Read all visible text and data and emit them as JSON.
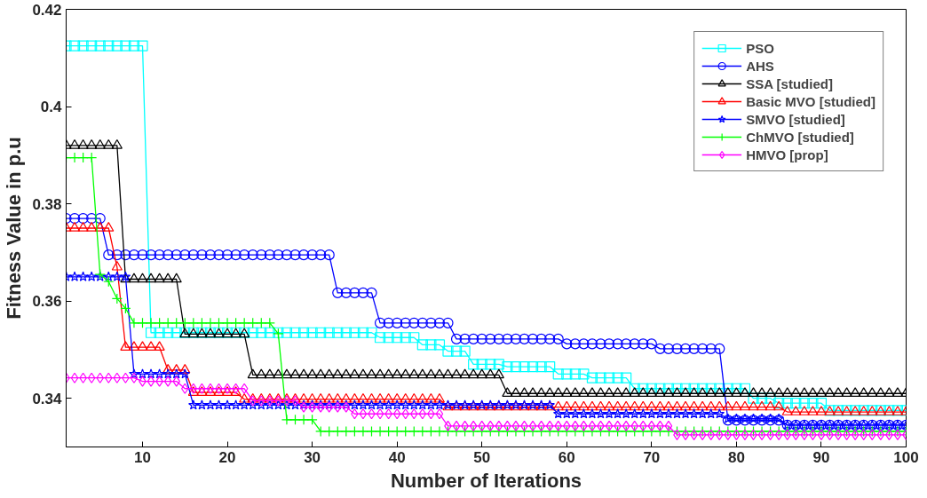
{
  "chart_data": {
    "type": "line",
    "xlabel": "Number of Iterations",
    "ylabel": "Fitness Value in p.u",
    "x": [
      1,
      2,
      3,
      4,
      5,
      6,
      7,
      8,
      9,
      10,
      11,
      12,
      13,
      14,
      15,
      16,
      17,
      18,
      19,
      20,
      21,
      22,
      23,
      24,
      25,
      26,
      27,
      28,
      29,
      30,
      31,
      32,
      33,
      34,
      35,
      36,
      37,
      38,
      39,
      40,
      41,
      42,
      43,
      44,
      45,
      46,
      47,
      48,
      49,
      50,
      51,
      52,
      53,
      54,
      55,
      56,
      57,
      58,
      59,
      60,
      61,
      62,
      63,
      64,
      65,
      66,
      67,
      68,
      69,
      70,
      71,
      72,
      73,
      74,
      75,
      76,
      77,
      78,
      79,
      80,
      81,
      82,
      83,
      84,
      85,
      86,
      87,
      88,
      89,
      90,
      91,
      92,
      93,
      94,
      95,
      96,
      97,
      98,
      99,
      100
    ],
    "xlim": [
      1,
      100
    ],
    "xticks": [
      10,
      20,
      30,
      40,
      50,
      60,
      70,
      80,
      90,
      100
    ],
    "ylim": [
      0.33,
      0.42
    ],
    "yticks": [
      0.34,
      0.36,
      0.38,
      0.4,
      0.42
    ],
    "grid": false,
    "legend": "top right",
    "line_style": "solid",
    "series": [
      {
        "name": "PSO",
        "color": "#00ffff",
        "marker": "square",
        "values": [
          0.4125,
          0.4125,
          0.4125,
          0.4125,
          0.4125,
          0.4125,
          0.4125,
          0.4125,
          0.4125,
          0.4125,
          0.3535,
          0.3535,
          0.3535,
          0.3535,
          0.3535,
          0.3535,
          0.3535,
          0.3535,
          0.3535,
          0.3535,
          0.3535,
          0.3535,
          0.3535,
          0.3535,
          0.3535,
          0.3535,
          0.3535,
          0.3535,
          0.3535,
          0.3535,
          0.3535,
          0.3535,
          0.3535,
          0.3535,
          0.3535,
          0.3535,
          0.3535,
          0.3525,
          0.3525,
          0.3525,
          0.3525,
          0.3525,
          0.351,
          0.351,
          0.351,
          0.3497,
          0.3497,
          0.3497,
          0.347,
          0.347,
          0.347,
          0.347,
          0.3465,
          0.3465,
          0.3465,
          0.3465,
          0.3465,
          0.3465,
          0.345,
          0.345,
          0.345,
          0.345,
          0.3442,
          0.3442,
          0.3442,
          0.3442,
          0.3442,
          0.342,
          0.342,
          0.342,
          0.342,
          0.342,
          0.342,
          0.342,
          0.342,
          0.342,
          0.342,
          0.342,
          0.342,
          0.342,
          0.342,
          0.34,
          0.34,
          0.34,
          0.339,
          0.339,
          0.339,
          0.339,
          0.339,
          0.339,
          0.3375,
          0.3375,
          0.3375,
          0.3375,
          0.3375,
          0.3375,
          0.3375,
          0.3375,
          0.3375,
          0.3375
        ]
      },
      {
        "name": "AHS",
        "color": "#0000ff",
        "marker": "circle",
        "values": [
          0.377,
          0.377,
          0.377,
          0.377,
          0.377,
          0.3695,
          0.3695,
          0.3695,
          0.3695,
          0.3695,
          0.3695,
          0.3695,
          0.3695,
          0.3695,
          0.3695,
          0.3695,
          0.3695,
          0.3695,
          0.3695,
          0.3695,
          0.3695,
          0.3695,
          0.3695,
          0.3695,
          0.3695,
          0.3695,
          0.3695,
          0.3695,
          0.3695,
          0.3695,
          0.3695,
          0.3695,
          0.3617,
          0.3617,
          0.3617,
          0.3617,
          0.3617,
          0.3555,
          0.3555,
          0.3555,
          0.3555,
          0.3555,
          0.3555,
          0.3555,
          0.3555,
          0.3555,
          0.3522,
          0.3522,
          0.3522,
          0.3522,
          0.3522,
          0.3522,
          0.3522,
          0.3522,
          0.3522,
          0.3522,
          0.3522,
          0.3522,
          0.3522,
          0.3512,
          0.3512,
          0.3512,
          0.3512,
          0.3512,
          0.3512,
          0.3512,
          0.3512,
          0.3512,
          0.3512,
          0.3512,
          0.3502,
          0.3502,
          0.3502,
          0.3502,
          0.3502,
          0.3502,
          0.3502,
          0.3502,
          0.3355,
          0.3355,
          0.3355,
          0.3355,
          0.3355,
          0.3355,
          0.3355,
          0.3345,
          0.3345,
          0.3345,
          0.3345,
          0.3345,
          0.3345,
          0.3345,
          0.3345,
          0.3345,
          0.3345,
          0.3345,
          0.3345,
          0.3345,
          0.3345,
          0.3345
        ]
      },
      {
        "name": "SSA [studied]",
        "color": "#000000",
        "marker": "triangle",
        "values": [
          0.392,
          0.392,
          0.392,
          0.392,
          0.392,
          0.392,
          0.392,
          0.3645,
          0.3645,
          0.3645,
          0.3645,
          0.3645,
          0.3645,
          0.3645,
          0.3532,
          0.3532,
          0.3532,
          0.3532,
          0.3532,
          0.3532,
          0.3532,
          0.3532,
          0.3448,
          0.3448,
          0.3448,
          0.3448,
          0.3448,
          0.3448,
          0.3448,
          0.3448,
          0.3448,
          0.3448,
          0.3448,
          0.3448,
          0.3448,
          0.3448,
          0.3448,
          0.3448,
          0.3448,
          0.3448,
          0.3448,
          0.3448,
          0.3448,
          0.3448,
          0.3448,
          0.3448,
          0.3448,
          0.3448,
          0.3448,
          0.3448,
          0.3448,
          0.3448,
          0.341,
          0.341,
          0.341,
          0.341,
          0.341,
          0.341,
          0.341,
          0.341,
          0.341,
          0.341,
          0.341,
          0.341,
          0.341,
          0.341,
          0.341,
          0.341,
          0.341,
          0.341,
          0.341,
          0.341,
          0.341,
          0.341,
          0.341,
          0.341,
          0.341,
          0.341,
          0.341,
          0.341,
          0.341,
          0.341,
          0.341,
          0.341,
          0.341,
          0.341,
          0.341,
          0.341,
          0.341,
          0.341,
          0.341,
          0.341,
          0.341,
          0.341,
          0.341,
          0.341,
          0.341,
          0.341,
          0.341,
          0.341
        ]
      },
      {
        "name": "Basic MVO [studied]",
        "color": "#ff0000",
        "marker": "triangle",
        "values": [
          0.375,
          0.375,
          0.375,
          0.375,
          0.375,
          0.375,
          0.367,
          0.3505,
          0.3505,
          0.3505,
          0.3505,
          0.3505,
          0.3458,
          0.3458,
          0.3458,
          0.3412,
          0.3412,
          0.3412,
          0.3412,
          0.3412,
          0.3412,
          0.3398,
          0.3398,
          0.3398,
          0.3398,
          0.3398,
          0.3398,
          0.3398,
          0.3398,
          0.3398,
          0.3398,
          0.3398,
          0.3398,
          0.3398,
          0.3398,
          0.3398,
          0.3398,
          0.3398,
          0.3398,
          0.3398,
          0.3398,
          0.3398,
          0.3398,
          0.3398,
          0.3398,
          0.3382,
          0.3382,
          0.3382,
          0.3382,
          0.3382,
          0.3382,
          0.3382,
          0.3382,
          0.3382,
          0.3382,
          0.3382,
          0.3382,
          0.3382,
          0.3382,
          0.3382,
          0.3382,
          0.3382,
          0.3382,
          0.3382,
          0.3382,
          0.3382,
          0.3382,
          0.3382,
          0.3382,
          0.3382,
          0.3382,
          0.3382,
          0.3382,
          0.3382,
          0.3382,
          0.3382,
          0.3382,
          0.3382,
          0.3382,
          0.3382,
          0.3382,
          0.3382,
          0.3382,
          0.3382,
          0.3382,
          0.3372,
          0.3372,
          0.3372,
          0.3372,
          0.3372,
          0.3372,
          0.3372,
          0.3372,
          0.3372,
          0.3372,
          0.3372,
          0.3372,
          0.3372,
          0.3372,
          0.3372
        ]
      },
      {
        "name": "SMVO [studied]",
        "color": "#0000ff",
        "marker": "star",
        "values": [
          0.365,
          0.365,
          0.365,
          0.365,
          0.365,
          0.365,
          0.365,
          0.365,
          0.345,
          0.345,
          0.345,
          0.345,
          0.345,
          0.345,
          0.345,
          0.3386,
          0.3386,
          0.3386,
          0.3386,
          0.3386,
          0.3386,
          0.3386,
          0.3386,
          0.3386,
          0.3386,
          0.3386,
          0.3386,
          0.3386,
          0.3386,
          0.3386,
          0.3386,
          0.3386,
          0.3386,
          0.3386,
          0.3386,
          0.3386,
          0.3386,
          0.3386,
          0.3386,
          0.3386,
          0.3386,
          0.3386,
          0.3386,
          0.3386,
          0.3386,
          0.3386,
          0.3386,
          0.3386,
          0.3386,
          0.3386,
          0.3386,
          0.3386,
          0.3386,
          0.3386,
          0.3386,
          0.3386,
          0.3386,
          0.3386,
          0.3368,
          0.3368,
          0.3368,
          0.3368,
          0.3368,
          0.3368,
          0.3368,
          0.3368,
          0.3368,
          0.3368,
          0.3368,
          0.3368,
          0.3368,
          0.3368,
          0.3368,
          0.3368,
          0.3368,
          0.3368,
          0.3368,
          0.3368,
          0.3358,
          0.3358,
          0.3358,
          0.3358,
          0.3358,
          0.3358,
          0.3358,
          0.3345,
          0.3345,
          0.3345,
          0.3345,
          0.3345,
          0.3345,
          0.3345,
          0.3345,
          0.3345,
          0.3345,
          0.3345,
          0.3345,
          0.3345,
          0.3345,
          0.3345
        ]
      },
      {
        "name": "ChMVO [studied]",
        "color": "#00ff00",
        "marker": "cross",
        "values": [
          0.3895,
          0.3895,
          0.3895,
          0.3895,
          0.3655,
          0.364,
          0.3605,
          0.3585,
          0.3555,
          0.3555,
          0.3555,
          0.3555,
          0.3555,
          0.3555,
          0.3555,
          0.3555,
          0.3555,
          0.3555,
          0.3555,
          0.3555,
          0.3555,
          0.3555,
          0.3555,
          0.3555,
          0.3555,
          0.3533,
          0.3356,
          0.3356,
          0.3356,
          0.3356,
          0.3332,
          0.3332,
          0.3332,
          0.3332,
          0.3332,
          0.3332,
          0.3332,
          0.3332,
          0.3332,
          0.3332,
          0.3332,
          0.3332,
          0.3332,
          0.3332,
          0.3332,
          0.3332,
          0.3332,
          0.3332,
          0.3332,
          0.3332,
          0.3332,
          0.3332,
          0.3332,
          0.3332,
          0.3332,
          0.3332,
          0.3332,
          0.3332,
          0.3332,
          0.3332,
          0.3332,
          0.3332,
          0.3332,
          0.3332,
          0.3332,
          0.3332,
          0.3332,
          0.3332,
          0.3332,
          0.3332,
          0.3332,
          0.3332,
          0.3332,
          0.3332,
          0.3332,
          0.3332,
          0.3332,
          0.3332,
          0.3332,
          0.3332,
          0.3332,
          0.3332,
          0.3332,
          0.3332,
          0.3332,
          0.3332,
          0.3332,
          0.3332,
          0.3332,
          0.3332,
          0.3332,
          0.3332,
          0.3332,
          0.3332,
          0.3332,
          0.3332,
          0.3332,
          0.3332,
          0.3332,
          0.3332
        ]
      },
      {
        "name": "HMVO [prop]",
        "color": "#ff00ff",
        "marker": "diamond",
        "values": [
          0.3442,
          0.3442,
          0.3442,
          0.3442,
          0.3442,
          0.3442,
          0.3442,
          0.3442,
          0.3442,
          0.3435,
          0.3435,
          0.3435,
          0.3435,
          0.3435,
          0.342,
          0.342,
          0.342,
          0.342,
          0.342,
          0.342,
          0.342,
          0.342,
          0.3395,
          0.3395,
          0.3395,
          0.3395,
          0.3395,
          0.3395,
          0.3382,
          0.3382,
          0.3382,
          0.3382,
          0.3382,
          0.3382,
          0.3368,
          0.3368,
          0.3368,
          0.3368,
          0.3368,
          0.3368,
          0.3368,
          0.3368,
          0.3368,
          0.3368,
          0.3368,
          0.3343,
          0.3343,
          0.3343,
          0.3343,
          0.3343,
          0.3343,
          0.3343,
          0.3343,
          0.3343,
          0.3343,
          0.3343,
          0.3343,
          0.3343,
          0.3343,
          0.3343,
          0.3343,
          0.3343,
          0.3343,
          0.3343,
          0.3343,
          0.3343,
          0.3343,
          0.3343,
          0.3343,
          0.3343,
          0.3343,
          0.3343,
          0.3325,
          0.3325,
          0.3325,
          0.3325,
          0.3325,
          0.3325,
          0.3325,
          0.3325,
          0.3325,
          0.3325,
          0.3325,
          0.3325,
          0.3325,
          0.3325,
          0.3325,
          0.3325,
          0.3325,
          0.3325,
          0.3325,
          0.3325,
          0.3325,
          0.3325,
          0.3325,
          0.3325,
          0.3325,
          0.3325,
          0.3325,
          0.3325
        ]
      }
    ]
  }
}
